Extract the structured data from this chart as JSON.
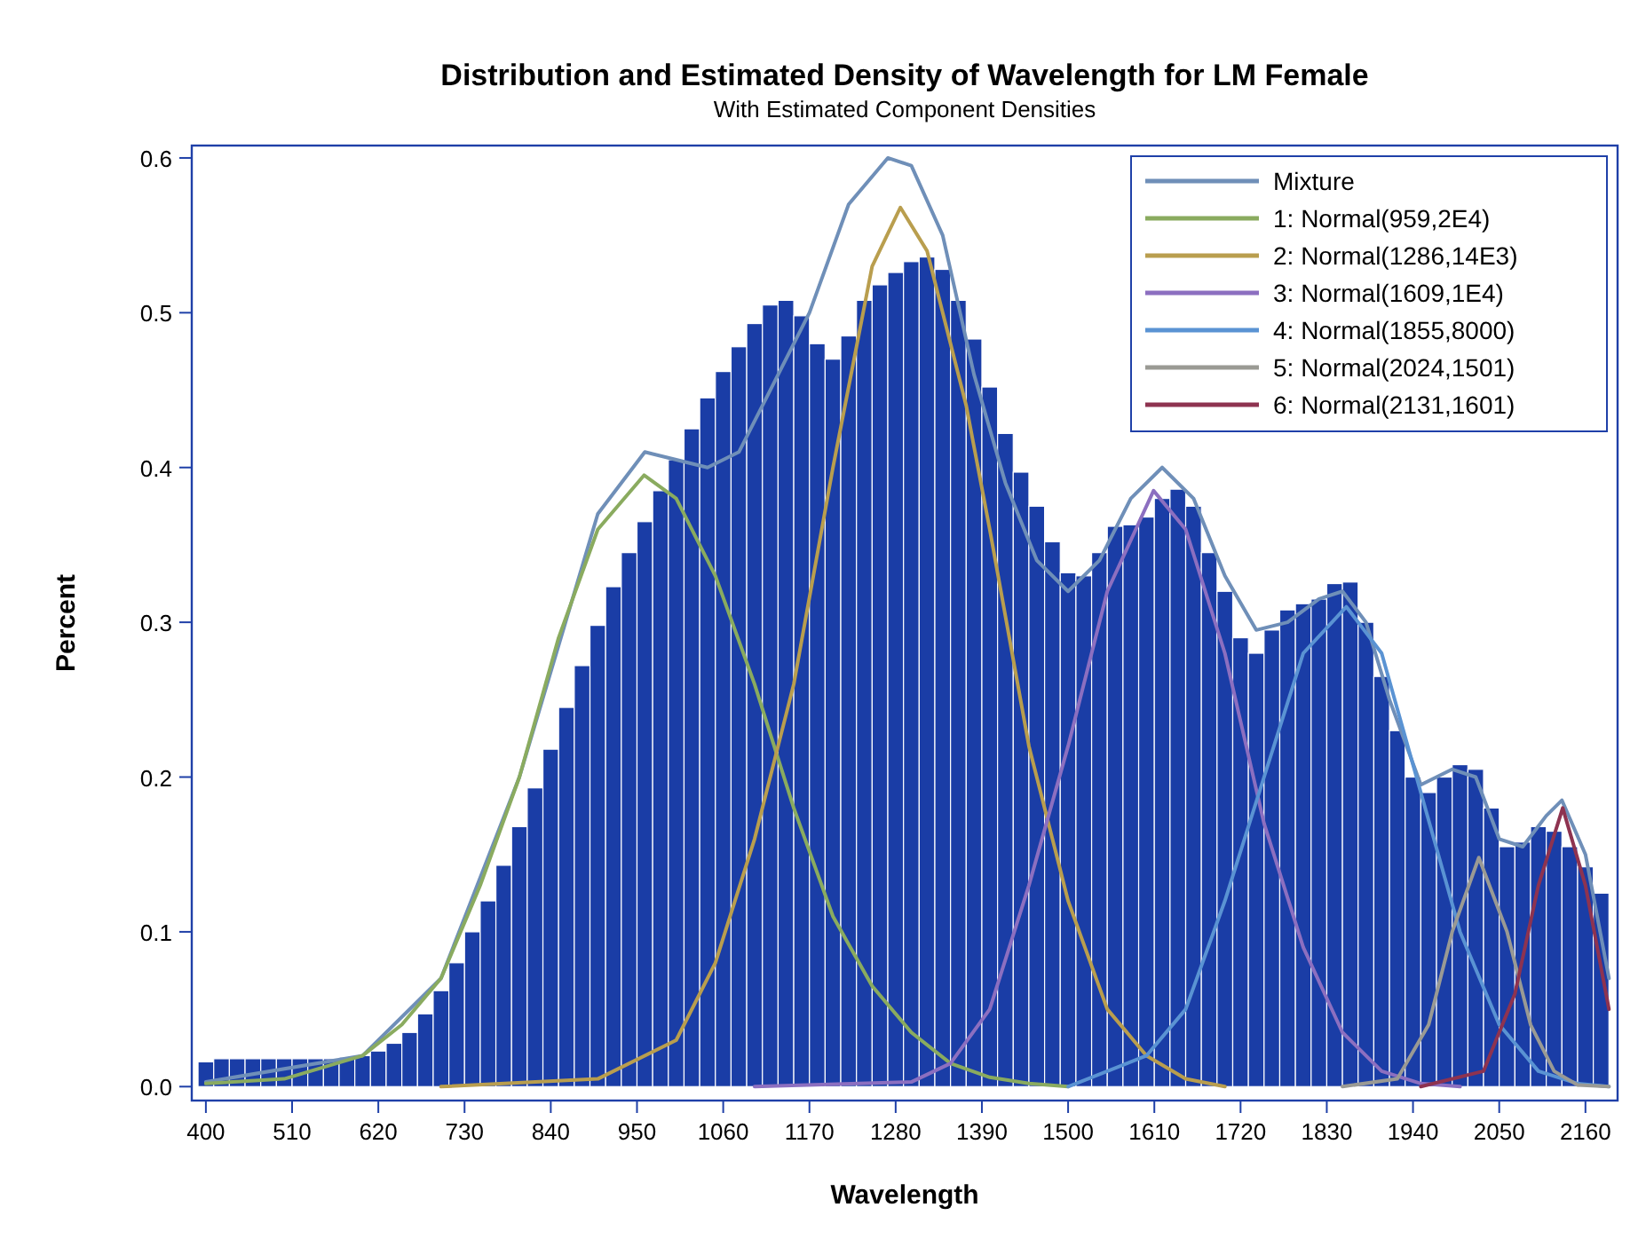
{
  "chart_data": {
    "type": "histogram",
    "title": "Distribution and Estimated Density of Wavelength for LM Female",
    "subtitle": "With Estimated Component Densities",
    "xlabel": "Wavelength",
    "ylabel": "Percent",
    "color": "#1a3da6",
    "bins": [
      390,
      410,
      430,
      450,
      470,
      490,
      510,
      530,
      550,
      570,
      590,
      610,
      630,
      650,
      670,
      690,
      710,
      730,
      750,
      770,
      790,
      810,
      830,
      850,
      870,
      890,
      910,
      930,
      950,
      970,
      990,
      1010,
      1030,
      1050,
      1070,
      1090,
      1110,
      1130,
      1150,
      1170,
      1190,
      1210,
      1230,
      1250,
      1270,
      1290,
      1310,
      1330,
      1350,
      1370,
      1390,
      1410,
      1430,
      1450,
      1470,
      1490,
      1510,
      1530,
      1550,
      1570,
      1590,
      1610,
      1630,
      1650,
      1670,
      1690,
      1710,
      1730,
      1750,
      1770,
      1790,
      1810,
      1830,
      1850,
      1870,
      1890,
      1910,
      1930,
      1950,
      1970,
      1990,
      2010,
      2030,
      2050,
      2070,
      2090,
      2110,
      2130,
      2150,
      2170,
      2190
    ],
    "values": [
      0.016,
      0.018,
      0.018,
      0.018,
      0.018,
      0.018,
      0.018,
      0.018,
      0.018,
      0.019,
      0.02,
      0.023,
      0.028,
      0.035,
      0.047,
      0.062,
      0.08,
      0.1,
      0.12,
      0.143,
      0.168,
      0.193,
      0.218,
      0.245,
      0.272,
      0.298,
      0.323,
      0.345,
      0.365,
      0.385,
      0.405,
      0.425,
      0.445,
      0.462,
      0.478,
      0.493,
      0.505,
      0.508,
      0.498,
      0.48,
      0.47,
      0.485,
      0.508,
      0.518,
      0.526,
      0.533,
      0.536,
      0.528,
      0.508,
      0.483,
      0.452,
      0.422,
      0.397,
      0.375,
      0.352,
      0.332,
      0.33,
      0.345,
      0.362,
      0.363,
      0.368,
      0.38,
      0.386,
      0.375,
      0.345,
      0.32,
      0.29,
      0.28,
      0.295,
      0.308,
      0.312,
      0.315,
      0.325,
      0.326,
      0.3,
      0.265,
      0.23,
      0.2,
      0.19,
      0.2,
      0.208,
      0.205,
      0.18,
      0.155,
      0.158,
      0.168,
      0.165,
      0.155,
      0.142,
      0.125
    ],
    "series": [
      {
        "type": "line",
        "name": "Mixture",
        "color": "#6f8fb8",
        "x": [
          400,
          600,
          700,
          800,
          900,
          960,
          1000,
          1040,
          1080,
          1120,
          1170,
          1220,
          1270,
          1300,
          1340,
          1380,
          1420,
          1460,
          1500,
          1540,
          1580,
          1620,
          1660,
          1700,
          1740,
          1780,
          1820,
          1850,
          1880,
          1910,
          1950,
          1990,
          2020,
          2050,
          2080,
          2110,
          2130,
          2160,
          2190
        ],
        "values": [
          0.003,
          0.02,
          0.07,
          0.2,
          0.37,
          0.41,
          0.405,
          0.4,
          0.41,
          0.45,
          0.5,
          0.57,
          0.6,
          0.595,
          0.55,
          0.46,
          0.39,
          0.34,
          0.32,
          0.34,
          0.38,
          0.4,
          0.38,
          0.33,
          0.295,
          0.3,
          0.315,
          0.32,
          0.3,
          0.25,
          0.195,
          0.205,
          0.2,
          0.16,
          0.155,
          0.175,
          0.185,
          0.15,
          0.07
        ]
      },
      {
        "type": "line",
        "name": "1: Normal(959,2E4)",
        "color": "#8aab5f",
        "x": [
          400,
          500,
          600,
          650,
          700,
          750,
          800,
          850,
          900,
          959,
          1000,
          1050,
          1100,
          1150,
          1200,
          1250,
          1300,
          1350,
          1400,
          1450,
          1500
        ],
        "values": [
          0.002,
          0.005,
          0.02,
          0.04,
          0.07,
          0.13,
          0.2,
          0.29,
          0.36,
          0.395,
          0.38,
          0.33,
          0.26,
          0.18,
          0.11,
          0.065,
          0.035,
          0.015,
          0.006,
          0.002,
          0
        ]
      },
      {
        "type": "line",
        "name": "2: Normal(1286,14E3)",
        "color": "#b99e4e",
        "x": [
          700,
          900,
          1000,
          1050,
          1100,
          1150,
          1200,
          1250,
          1286,
          1320,
          1370,
          1400,
          1450,
          1500,
          1550,
          1600,
          1650,
          1700
        ],
        "values": [
          0,
          0.005,
          0.03,
          0.08,
          0.16,
          0.26,
          0.4,
          0.53,
          0.568,
          0.54,
          0.44,
          0.36,
          0.22,
          0.12,
          0.05,
          0.02,
          0.005,
          0
        ]
      },
      {
        "type": "line",
        "name": "3: Normal(1609,1E4)",
        "color": "#8c6fc0",
        "x": [
          1100,
          1300,
          1350,
          1400,
          1450,
          1500,
          1550,
          1609,
          1650,
          1700,
          1750,
          1800,
          1850,
          1900,
          1950,
          2000
        ],
        "values": [
          0,
          0.003,
          0.015,
          0.05,
          0.13,
          0.22,
          0.32,
          0.385,
          0.36,
          0.28,
          0.17,
          0.09,
          0.035,
          0.01,
          0.002,
          0
        ]
      },
      {
        "type": "line",
        "name": "4: Normal(1855,8000)",
        "color": "#5a93d3",
        "x": [
          1500,
          1600,
          1650,
          1700,
          1750,
          1800,
          1855,
          1900,
          1950,
          2000,
          2050,
          2100,
          2150,
          2190
        ],
        "values": [
          0,
          0.02,
          0.05,
          0.12,
          0.2,
          0.28,
          0.31,
          0.28,
          0.19,
          0.1,
          0.04,
          0.01,
          0.002,
          0
        ]
      },
      {
        "type": "line",
        "name": "5: Normal(2024,1501)",
        "color": "#9a9a94",
        "x": [
          1850,
          1920,
          1960,
          1990,
          2024,
          2060,
          2090,
          2120,
          2150,
          2190
        ],
        "values": [
          0,
          0.005,
          0.04,
          0.1,
          0.148,
          0.1,
          0.04,
          0.01,
          0.001,
          0
        ]
      },
      {
        "type": "line",
        "name": "6: Normal(2131,1601)",
        "color": "#8e3350",
        "x": [
          1950,
          2030,
          2070,
          2100,
          2131,
          2160,
          2190
        ],
        "values": [
          0,
          0.01,
          0.06,
          0.13,
          0.18,
          0.13,
          0.05
        ]
      }
    ],
    "xlim": [
      382,
      2201
    ],
    "ylim": [
      -0.009,
      0.608
    ],
    "xticks": [
      400,
      510,
      620,
      730,
      840,
      950,
      1060,
      1170,
      1280,
      1390,
      1500,
      1610,
      1720,
      1830,
      1940,
      2050,
      2160
    ],
    "yticks": [
      {
        "value": 0,
        "label": "0.0"
      },
      {
        "value": 0.1,
        "label": "0.1"
      },
      {
        "value": 0.2,
        "label": "0.2"
      },
      {
        "value": 0.3,
        "label": "0.3"
      },
      {
        "value": 0.4,
        "label": "0.4"
      },
      {
        "value": 0.5,
        "label": "0.5"
      },
      {
        "value": 0.6,
        "label": "0.6"
      }
    ],
    "legend": "top right",
    "grid": false
  }
}
